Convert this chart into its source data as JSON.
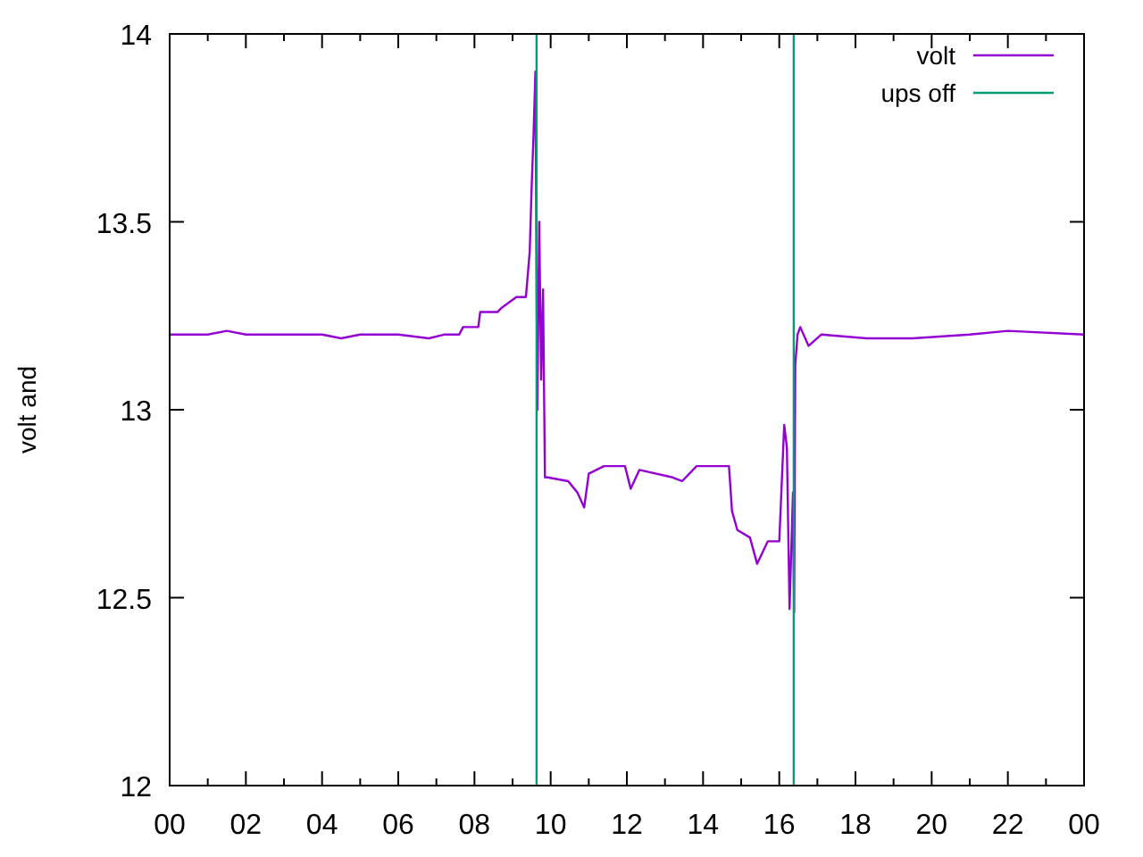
{
  "chart_data": {
    "type": "line",
    "ylabel": "volt and",
    "legend": "top right",
    "grid": false,
    "xlim": [
      0,
      24
    ],
    "xticks": [
      {
        "value": 0,
        "label": "00"
      },
      {
        "value": 2,
        "label": "02"
      },
      {
        "value": 4,
        "label": "04"
      },
      {
        "value": 6,
        "label": "06"
      },
      {
        "value": 8,
        "label": "08"
      },
      {
        "value": 10,
        "label": "10"
      },
      {
        "value": 12,
        "label": "12"
      },
      {
        "value": 14,
        "label": "14"
      },
      {
        "value": 16,
        "label": "16"
      },
      {
        "value": 18,
        "label": "18"
      },
      {
        "value": 20,
        "label": "20"
      },
      {
        "value": 22,
        "label": "22"
      },
      {
        "value": 24,
        "label": "00"
      }
    ],
    "ylim": [
      12,
      14
    ],
    "yticks": [
      12,
      12.5,
      13,
      13.5,
      14
    ],
    "series": [
      {
        "name": "volt",
        "color": "#9400d3",
        "x": [
          0,
          1,
          1.5,
          2,
          3,
          4,
          4.5,
          5,
          6,
          6.8,
          7.2,
          7.6,
          7.7,
          8.1,
          8.15,
          8.6,
          8.7,
          9.1,
          9.35,
          9.45,
          9.5,
          9.55,
          9.6,
          9.65,
          9.7,
          9.75,
          9.8,
          9.85,
          9.92,
          10.46,
          10.7,
          10.88,
          11.0,
          11.4,
          11.95,
          12.1,
          12.33,
          13.2,
          13.45,
          13.83,
          14.68,
          14.76,
          14.9,
          15.23,
          15.42,
          15.7,
          16.0,
          16.13,
          16.2,
          16.27,
          16.36,
          16.39,
          16.42,
          16.48,
          16.55,
          16.77,
          17.1,
          18.3,
          19.5,
          21,
          22,
          24
        ],
        "values": [
          13.2,
          13.2,
          13.21,
          13.2,
          13.2,
          13.2,
          13.19,
          13.2,
          13.2,
          13.19,
          13.2,
          13.2,
          13.22,
          13.22,
          13.26,
          13.26,
          13.27,
          13.3,
          13.3,
          13.42,
          13.59,
          13.73,
          13.9,
          13.0,
          13.5,
          13.08,
          13.32,
          12.82,
          12.82,
          12.81,
          12.78,
          12.74,
          12.83,
          12.85,
          12.85,
          12.79,
          12.84,
          12.82,
          12.81,
          12.85,
          12.85,
          12.73,
          12.68,
          12.66,
          12.59,
          12.65,
          12.65,
          12.96,
          12.9,
          12.47,
          12.78,
          12.46,
          13.12,
          13.2,
          13.22,
          13.17,
          13.2,
          13.19,
          13.19,
          13.2,
          13.21,
          13.2
        ]
      },
      {
        "name": "ups off",
        "color": "#009e73",
        "x": [
          9.63,
          9.63,
          null,
          16.38,
          16.38
        ],
        "values": [
          12,
          14,
          null,
          14,
          12
        ]
      }
    ]
  }
}
